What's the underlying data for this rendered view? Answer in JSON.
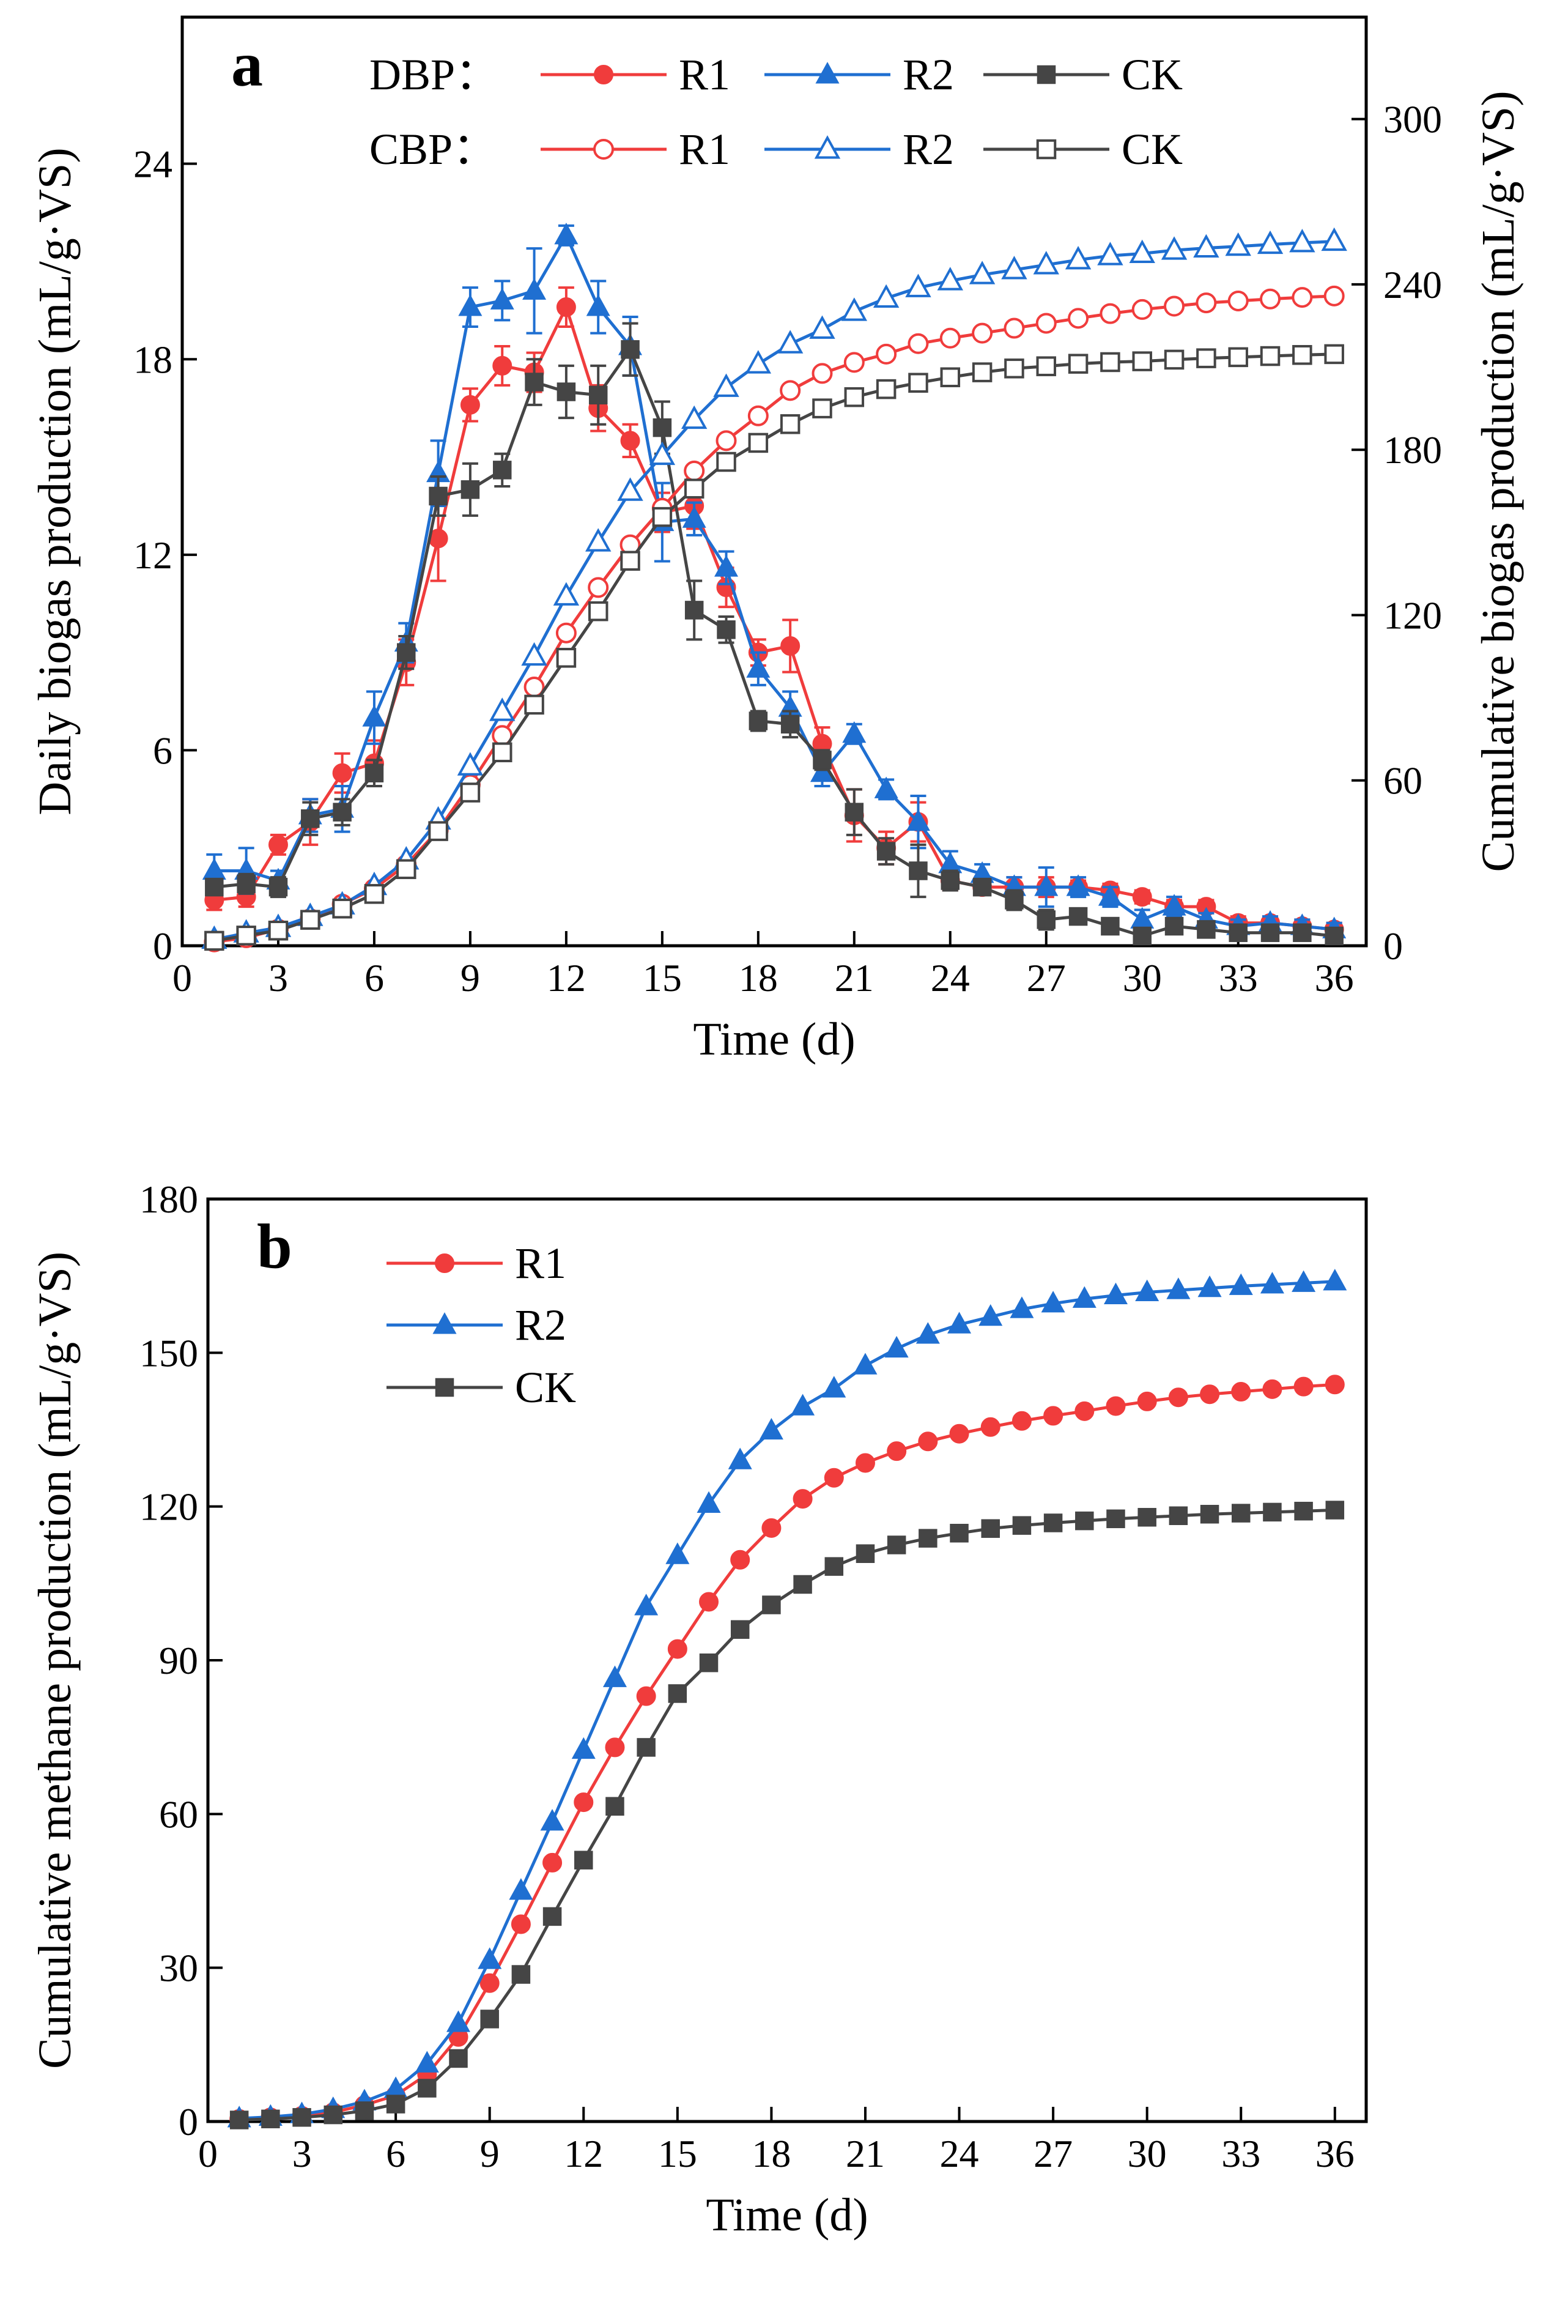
{
  "chart_data": [
    {
      "type": "line",
      "panel_label": "a",
      "xlabel": "Time (d)",
      "ylabel": "Daily biogas production (mL/g·VS)",
      "y2label": "Cumulative biogas production (mL/g·VS)",
      "xlim": [
        0,
        37
      ],
      "ylim": [
        0,
        28.5
      ],
      "y2lim": [
        0,
        337
      ],
      "xticks": [
        "0",
        "3",
        "6",
        "9",
        "12",
        "15",
        "18",
        "21",
        "24",
        "27",
        "30",
        "33",
        "36"
      ],
      "yticks": [
        "0",
        "6",
        "12",
        "18",
        "24"
      ],
      "y2ticks": [
        "0",
        "60",
        "120",
        "180",
        "240",
        "300"
      ],
      "legend": {
        "group1_label": "DBP：",
        "group2_label": "CBP：",
        "entries": [
          "R1",
          "R2",
          "CK"
        ]
      },
      "x": [
        1,
        2,
        3,
        4,
        5,
        6,
        7,
        8,
        9,
        10,
        11,
        12,
        13,
        14,
        15,
        16,
        17,
        18,
        19,
        20,
        21,
        22,
        23,
        24,
        25,
        26,
        27,
        28,
        29,
        30,
        31,
        32,
        33,
        34,
        35,
        36
      ],
      "series": [
        {
          "name": "R1",
          "group": "DBP",
          "axis": "left",
          "color": "#f03c3c",
          "marker": "circle-filled",
          "values": [
            1.4,
            1.5,
            3.1,
            3.8,
            5.3,
            5.6,
            8.7,
            12.5,
            16.6,
            17.8,
            17.6,
            19.6,
            16.5,
            15.5,
            13.3,
            13.5,
            11.0,
            9.0,
            9.2,
            6.2,
            4.0,
            3.0,
            3.8,
            2.0,
            1.8,
            1.8,
            1.8,
            1.8,
            1.7,
            1.5,
            1.2,
            1.2,
            0.7,
            0.7,
            0.6,
            0.5
          ],
          "errors": [
            0.3,
            0.3,
            0.3,
            0.7,
            0.6,
            0.7,
            0.7,
            1.3,
            0.5,
            0.6,
            0.6,
            0.6,
            0.7,
            0.5,
            0.6,
            0.7,
            0.6,
            0.4,
            0.8,
            0.5,
            0.8,
            0.5,
            0.6,
            0.3,
            0.2,
            0.3,
            0.3,
            0.2,
            0.2,
            0.2,
            0.2,
            0.2,
            0.2,
            0.2,
            0.2,
            0.2
          ]
        },
        {
          "name": "R2",
          "group": "DBP",
          "axis": "left",
          "color": "#1f6fd1",
          "marker": "triangle-filled",
          "values": [
            2.3,
            2.3,
            2.0,
            4.0,
            4.2,
            7.0,
            9.3,
            14.5,
            19.6,
            19.8,
            20.1,
            21.8,
            19.6,
            18.4,
            13.0,
            13.1,
            11.6,
            8.5,
            7.3,
            5.3,
            6.5,
            4.8,
            3.8,
            2.5,
            2.2,
            1.8,
            1.8,
            1.8,
            1.5,
            0.8,
            1.2,
            0.8,
            0.6,
            0.7,
            0.6,
            0.5
          ],
          "errors": [
            0.5,
            0.7,
            0.3,
            0.5,
            0.7,
            0.8,
            0.6,
            1.0,
            0.6,
            0.6,
            1.3,
            0.3,
            0.8,
            0.9,
            1.2,
            0.5,
            0.5,
            0.5,
            0.5,
            0.4,
            0.3,
            0.3,
            0.8,
            0.4,
            0.3,
            0.3,
            0.6,
            0.3,
            0.3,
            0.3,
            0.3,
            0.2,
            0.2,
            0.2,
            0.2,
            0.2
          ]
        },
        {
          "name": "CK",
          "group": "DBP",
          "axis": "left",
          "color": "#454545",
          "marker": "square-filled",
          "values": [
            1.8,
            1.9,
            1.8,
            3.9,
            4.1,
            5.3,
            9.0,
            13.8,
            14.0,
            14.6,
            17.3,
            17.0,
            16.9,
            18.3,
            15.9,
            10.3,
            9.7,
            6.9,
            6.8,
            5.7,
            4.1,
            2.9,
            2.3,
            2.0,
            1.8,
            1.4,
            0.8,
            0.9,
            0.6,
            0.3,
            0.6,
            0.5,
            0.4,
            0.4,
            0.4,
            0.3
          ],
          "errors": [
            0.2,
            0.3,
            0.3,
            0.5,
            0.4,
            0.4,
            0.5,
            0.6,
            0.8,
            0.5,
            0.7,
            0.8,
            0.9,
            0.8,
            0.8,
            0.9,
            0.4,
            0.3,
            0.4,
            0.3,
            0.7,
            0.4,
            0.8,
            0.3,
            0.2,
            0.3,
            0.3,
            0.2,
            0.2,
            0.2,
            0.2,
            0.2,
            0.2,
            0.2,
            0.2,
            0.2
          ]
        },
        {
          "name": "R1",
          "group": "CBP",
          "axis": "right",
          "color": "#f03c3c",
          "marker": "circle-open",
          "values": [
            1.4,
            2.9,
            6.0,
            9.8,
            15.1,
            20.7,
            29.4,
            41.9,
            58.5,
            76.3,
            93.9,
            113.5,
            130.0,
            145.5,
            158.8,
            172.3,
            183.3,
            192.3,
            201.5,
            207.7,
            211.7,
            214.7,
            218.5,
            220.5,
            222.3,
            224.1,
            225.9,
            227.7,
            229.4,
            230.9,
            232.1,
            233.3,
            234.0,
            234.7,
            235.3,
            235.8
          ]
        },
        {
          "name": "R2",
          "group": "CBP",
          "axis": "right",
          "color": "#1f6fd1",
          "marker": "triangle-open",
          "values": [
            2.3,
            4.6,
            6.6,
            10.6,
            14.8,
            21.8,
            31.1,
            45.6,
            65.2,
            85.0,
            105.1,
            126.9,
            146.5,
            164.9,
            177.9,
            191.0,
            202.6,
            211.1,
            218.4,
            223.7,
            230.2,
            235.0,
            238.8,
            241.3,
            243.5,
            245.3,
            247.1,
            248.9,
            250.4,
            251.2,
            252.4,
            253.2,
            253.8,
            254.5,
            255.1,
            255.6
          ]
        },
        {
          "name": "CK",
          "group": "CBP",
          "axis": "right",
          "color": "#454545",
          "marker": "square-open",
          "values": [
            1.8,
            3.7,
            5.5,
            9.4,
            13.5,
            18.8,
            27.8,
            41.6,
            55.6,
            70.2,
            87.5,
            104.5,
            121.4,
            139.7,
            155.6,
            165.9,
            175.6,
            182.5,
            189.3,
            195.0,
            199.1,
            202.0,
            204.3,
            206.3,
            208.1,
            209.5,
            210.3,
            211.2,
            211.8,
            212.1,
            212.7,
            213.2,
            213.6,
            214.0,
            214.4,
            214.7
          ]
        }
      ]
    },
    {
      "type": "line",
      "panel_label": "b",
      "xlabel": "Time (d)",
      "ylabel": "Cumulative methane production (mL/g·VS)",
      "xlim": [
        0,
        37
      ],
      "ylim": [
        0,
        180
      ],
      "xticks": [
        "0",
        "3",
        "6",
        "9",
        "12",
        "15",
        "18",
        "21",
        "24",
        "27",
        "30",
        "33",
        "36"
      ],
      "yticks": [
        "0",
        "30",
        "60",
        "90",
        "120",
        "150",
        "180"
      ],
      "legend": {
        "entries": [
          "R1",
          "R2",
          "CK"
        ]
      },
      "x": [
        1,
        2,
        3,
        4,
        5,
        6,
        7,
        8,
        9,
        10,
        11,
        12,
        13,
        14,
        15,
        16,
        17,
        18,
        19,
        20,
        21,
        22,
        23,
        24,
        25,
        26,
        27,
        28,
        29,
        30,
        31,
        32,
        33,
        34,
        35,
        36
      ],
      "series": [
        {
          "name": "R1",
          "color": "#f03c3c",
          "marker": "circle-filled",
          "values": [
            0.5,
            0.8,
            1.1,
            1.8,
            3.2,
            5.1,
            9.2,
            16.5,
            27.0,
            38.5,
            50.5,
            62.3,
            73.0,
            83.0,
            92.2,
            101.4,
            109.6,
            115.8,
            121.5,
            125.6,
            128.5,
            130.8,
            132.7,
            134.2,
            135.5,
            136.7,
            137.7,
            138.6,
            139.6,
            140.5,
            141.3,
            141.9,
            142.4,
            142.9,
            143.4,
            143.8
          ]
        },
        {
          "name": "R2",
          "color": "#1f6fd1",
          "marker": "triangle-filled",
          "values": [
            0.6,
            0.9,
            1.4,
            2.4,
            3.9,
            6.3,
            11.3,
            19.2,
            31.5,
            45.0,
            58.5,
            72.5,
            86.5,
            100.5,
            110.5,
            120.5,
            129.0,
            134.8,
            139.5,
            143.0,
            147.5,
            150.8,
            153.5,
            155.5,
            157.0,
            158.5,
            159.6,
            160.5,
            161.2,
            161.8,
            162.2,
            162.6,
            163.0,
            163.3,
            163.6,
            163.9
          ]
        },
        {
          "name": "CK",
          "color": "#454545",
          "marker": "square-filled",
          "values": [
            0.3,
            0.5,
            0.8,
            1.3,
            2.1,
            3.4,
            6.5,
            12.3,
            20.0,
            28.7,
            40.0,
            51.0,
            61.5,
            73.0,
            83.5,
            89.5,
            96.0,
            100.8,
            104.8,
            108.3,
            110.8,
            112.5,
            113.8,
            114.8,
            115.7,
            116.3,
            116.8,
            117.2,
            117.6,
            117.9,
            118.2,
            118.5,
            118.7,
            118.9,
            119.1,
            119.3
          ]
        }
      ]
    }
  ]
}
